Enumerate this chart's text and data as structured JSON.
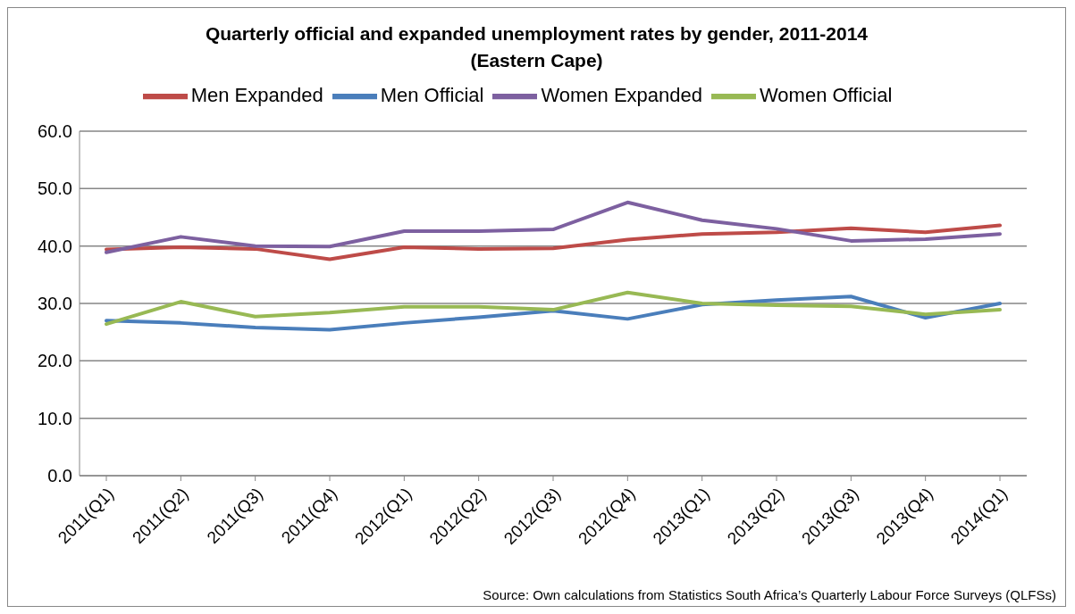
{
  "chart_data": {
    "type": "line",
    "title": "Quarterly official and expanded unemployment rates by gender, 2011-2014",
    "subtitle": "(Eastern Cape)",
    "categories": [
      "2011(Q1)",
      "2011(Q2)",
      "2011(Q3)",
      "2011(Q4)",
      "2012(Q1)",
      "2012(Q2)",
      "2012(Q3)",
      "2012(Q4)",
      "2013(Q1)",
      "2013(Q2)",
      "2013(Q3)",
      "2013(Q4)",
      "2014(Q1)"
    ],
    "series": [
      {
        "name": "Men Official",
        "color": "#4a7ebb",
        "values": [
          27.0,
          26.6,
          25.8,
          25.4,
          26.6,
          27.6,
          28.7,
          27.3,
          29.8,
          30.6,
          31.2,
          27.5,
          30.0
        ]
      },
      {
        "name": "Men Expanded",
        "color": "#be4b48",
        "values": [
          39.4,
          39.8,
          39.5,
          37.7,
          39.8,
          39.5,
          39.6,
          41.1,
          42.1,
          42.4,
          43.1,
          42.4,
          43.6
        ]
      },
      {
        "name": "Women Official",
        "color": "#98b954",
        "values": [
          26.4,
          30.3,
          27.7,
          28.4,
          29.4,
          29.4,
          28.9,
          31.9,
          30.0,
          29.7,
          29.5,
          28.1,
          28.9
        ]
      },
      {
        "name": "Women Expanded",
        "color": "#7d60a0",
        "values": [
          38.9,
          41.6,
          40.0,
          39.9,
          42.6,
          42.6,
          42.9,
          47.6,
          44.5,
          43.0,
          40.9,
          41.2,
          42.1
        ]
      }
    ],
    "ylim": [
      0,
      60
    ],
    "yticks": [
      {
        "value": 0,
        "label": "0.0"
      },
      {
        "value": 10,
        "label": "10.0"
      },
      {
        "value": 20,
        "label": "20.0"
      },
      {
        "value": 30,
        "label": "30.0"
      },
      {
        "value": 40,
        "label": "40.0"
      },
      {
        "value": 50,
        "label": "50.0"
      },
      {
        "value": 60,
        "label": "60.0"
      }
    ],
    "grid": "y",
    "legend": "top",
    "marker": "none",
    "line_style": "solid",
    "annotations": [
      "Source: Own calculations from Statistics South Africa’s Quarterly Labour Force Surveys (QLFSs)"
    ]
  }
}
